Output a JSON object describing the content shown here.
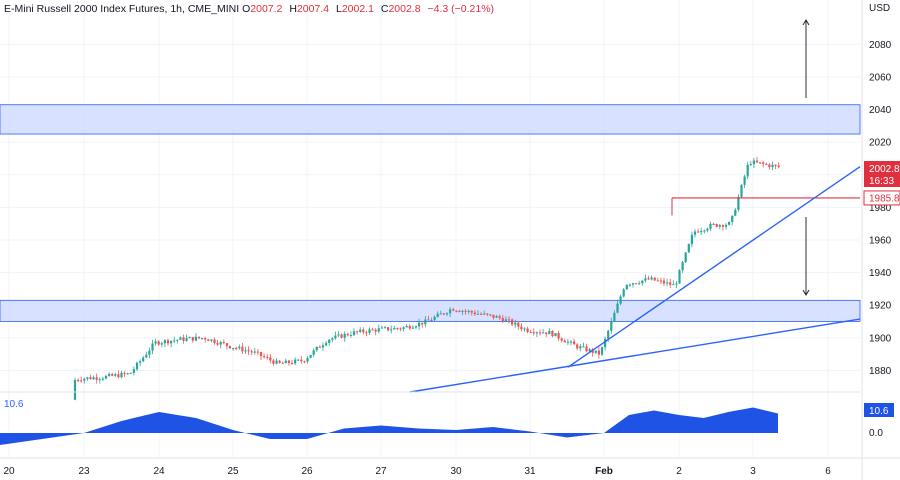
{
  "header": {
    "symbol": "E-Mini Russell 2000 Index Futures, 1h, CME_MINI",
    "open_label": "O",
    "open": "2007.2",
    "high_label": "H",
    "high": "2007.4",
    "low_label": "L",
    "low": "2002.1",
    "close_label": "C",
    "close": "2002.8",
    "change": "−4.3 (−0.21%)"
  },
  "currency": "USD",
  "price_badge": {
    "price": "2002.8",
    "countdown": "16:33"
  },
  "level_badge": {
    "price": "1985.8"
  },
  "indicator": {
    "value_label": "10.6",
    "badge": "10.6",
    "zero_label": "0.0"
  },
  "colors": {
    "up": "#26a69a",
    "down": "#ef5350",
    "zone": "#d1dcff",
    "zone_edge": "#2962ff",
    "indicator": "#1e53e5",
    "level": "#e0303f"
  },
  "chart_data": {
    "type": "candlestick",
    "y_axis": {
      "ticks": [
        1880,
        1900,
        1920,
        1940,
        1960,
        1980,
        2000,
        2020,
        2040,
        2060,
        2080
      ],
      "range": [
        1870,
        2102
      ]
    },
    "x_axis": {
      "ticks": [
        "20",
        "23",
        "24",
        "25",
        "26",
        "27",
        "30",
        "31",
        "Feb",
        "2",
        "3",
        "6"
      ]
    },
    "price_path": [
      [
        "20",
        1862
      ],
      [
        "23",
        1875
      ],
      [
        "23",
        1876
      ],
      [
        "23",
        1878
      ],
      [
        "24",
        1897
      ],
      [
        "24",
        1899
      ],
      [
        "24",
        1900
      ],
      [
        "25",
        1895
      ],
      [
        "25",
        1891
      ],
      [
        "25",
        1884
      ],
      [
        "26",
        1886
      ],
      [
        "26",
        1899
      ],
      [
        "26",
        1903
      ],
      [
        "27",
        1905
      ],
      [
        "27",
        1906
      ],
      [
        "27",
        1910
      ],
      [
        "30",
        1918
      ],
      [
        "30",
        1915
      ],
      [
        "30",
        1912
      ],
      [
        "31",
        1905
      ],
      [
        "31",
        1903
      ],
      [
        "31",
        1895
      ],
      [
        "Feb",
        1890
      ],
      [
        "Feb",
        1933
      ],
      [
        "Feb",
        1936
      ],
      [
        "2",
        1932
      ],
      [
        "2",
        1965
      ],
      [
        "2",
        1969
      ],
      [
        "2",
        1970
      ],
      [
        "3",
        2008
      ],
      [
        "3",
        2006
      ],
      [
        "3",
        2004
      ],
      [
        "3",
        2002.8
      ]
    ],
    "zones": [
      {
        "low": 2025,
        "high": 2043
      },
      {
        "low": 1910,
        "high": 1923
      }
    ],
    "horizontal_level": 1985.8,
    "trendlines": [
      {
        "from": [
          "30",
          1870
        ],
        "to": [
          "6",
          1912
        ]
      },
      {
        "from": [
          "31",
          1882
        ],
        "to": [
          "6",
          2006
        ]
      }
    ],
    "arrows": [
      {
        "from_price": 2032,
        "to_price": 2090,
        "direction": "up"
      },
      {
        "from_price": 1975,
        "to_price": 1925,
        "direction": "down"
      }
    ],
    "indicator_series": [
      [
        "20",
        -8
      ],
      [
        "23",
        0
      ],
      [
        "23",
        8
      ],
      [
        "24",
        14
      ],
      [
        "24",
        10
      ],
      [
        "25",
        2
      ],
      [
        "25",
        -4
      ],
      [
        "26",
        -4
      ],
      [
        "26",
        3
      ],
      [
        "27",
        5
      ],
      [
        "27",
        3
      ],
      [
        "30",
        2
      ],
      [
        "30",
        4
      ],
      [
        "31",
        1
      ],
      [
        "31",
        -3
      ],
      [
        "Feb",
        0
      ],
      [
        "Feb",
        12
      ],
      [
        "Feb",
        15
      ],
      [
        "2",
        12
      ],
      [
        "2",
        10
      ],
      [
        "2",
        14
      ],
      [
        "3",
        17
      ],
      [
        "3",
        13
      ],
      [
        "3",
        10.6
      ]
    ]
  }
}
